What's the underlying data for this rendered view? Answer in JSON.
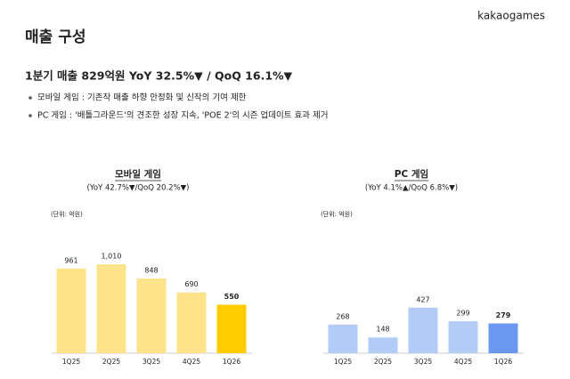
{
  "header": {
    "title": "매출 구성",
    "logo": "kakaogames"
  },
  "headline": "1분기 매출 829억원 YoY 32.5%▼ / QoQ 16.1%▼",
  "bullets": [
    "모바일 게임 : 기존작 매출 하향 안정화 및 신작의 기여 제한",
    "PC 게임 : '배틀그라운드'의 견조한 성장 지속, 'POE 2'의 시즌 업데이트 효과 제거"
  ],
  "chart_data": [
    {
      "type": "bar",
      "title": "모바일 게임",
      "subtitle": "(YoY 42.7%▼/QoQ 20.2%▼)",
      "unit": "(단위: 억원)",
      "categories": [
        "1Q25",
        "2Q25",
        "3Q25",
        "4Q25",
        "1Q26"
      ],
      "values": [
        961,
        1010,
        848,
        690,
        550
      ],
      "value_labels": [
        "961",
        "1,010",
        "848",
        "690",
        "550"
      ],
      "colors": [
        "#ffe38a",
        "#ffe38a",
        "#ffe38a",
        "#ffe38a",
        "#ffcc00"
      ]
    },
    {
      "type": "bar",
      "title": "PC 게임",
      "subtitle": "(YoY 4.1%▲/QoQ 6.8%▼)",
      "unit": "(단위: 억원)",
      "categories": [
        "1Q25",
        "2Q25",
        "3Q25",
        "4Q25",
        "1Q26"
      ],
      "values": [
        268,
        148,
        427,
        299,
        279
      ],
      "colors": [
        "#b3cbf7",
        "#b3cbf7",
        "#b3cbf7",
        "#b3cbf7",
        "#6a98f0"
      ]
    }
  ]
}
